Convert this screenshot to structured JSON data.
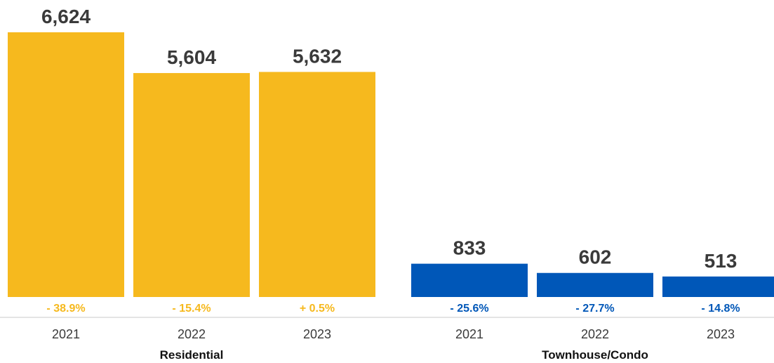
{
  "chart_data": {
    "type": "bar",
    "groups": [
      {
        "name": "Residential",
        "color": "#F6B91E",
        "bars": [
          {
            "year": "2021",
            "value": 6624,
            "value_label": "6,624",
            "change_label": "- 38.9%"
          },
          {
            "year": "2022",
            "value": 5604,
            "value_label": "5,604",
            "change_label": "- 15.4%"
          },
          {
            "year": "2023",
            "value": 5632,
            "value_label": "5,632",
            "change_label": "+ 0.5%"
          }
        ]
      },
      {
        "name": "Townhouse/Condo",
        "color": "#0057B8",
        "bars": [
          {
            "year": "2021",
            "value": 833,
            "value_label": "833",
            "change_label": "- 25.6%"
          },
          {
            "year": "2022",
            "value": 602,
            "value_label": "602",
            "change_label": "- 27.7%"
          },
          {
            "year": "2023",
            "value": 513,
            "value_label": "513",
            "change_label": "- 14.8%"
          }
        ]
      }
    ],
    "ylim": [
      0,
      6624
    ],
    "grid": false,
    "legend": "none"
  }
}
